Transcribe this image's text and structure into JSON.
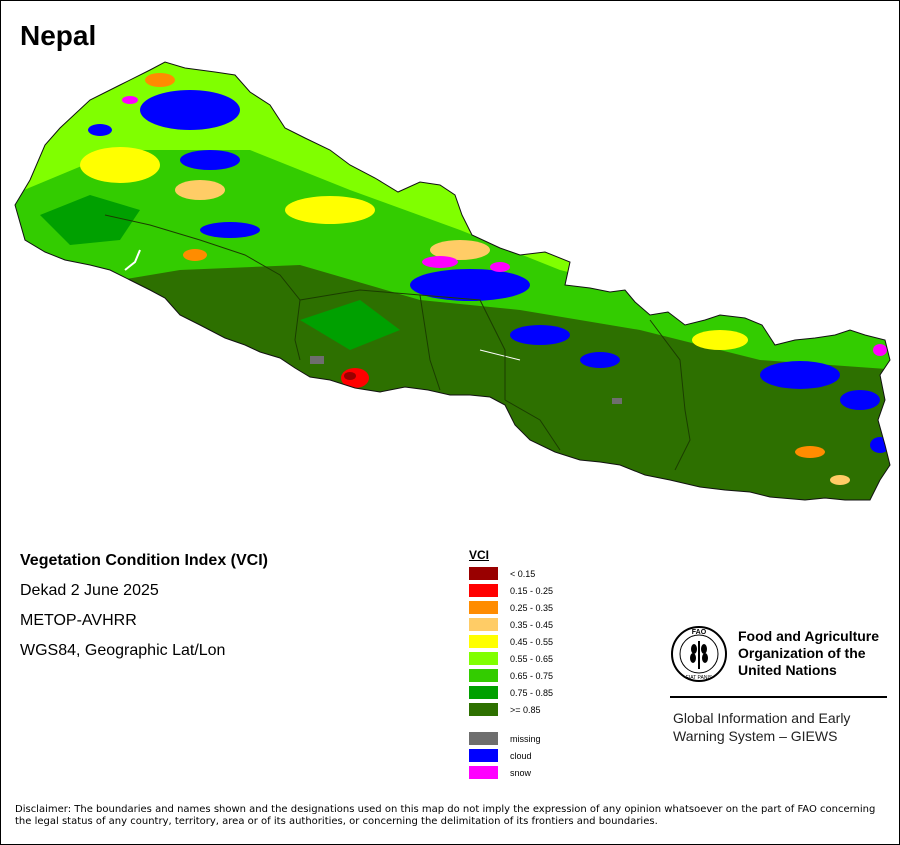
{
  "map": {
    "title": "Nepal"
  },
  "info": {
    "index_name": "Vegetation Condition Index (VCI)",
    "period": "Dekad 2 June 2025",
    "sensor": "METOP-AVHRR",
    "projection": "WGS84, Geographic Lat/Lon"
  },
  "legend": {
    "title": "VCI",
    "classes": [
      {
        "label": "< 0.15",
        "color": "#990000"
      },
      {
        "label": "0.15 - 0.25",
        "color": "#ff0000"
      },
      {
        "label": "0.25 - 0.35",
        "color": "#ff8c00"
      },
      {
        "label": "0.35 - 0.45",
        "color": "#ffcc66"
      },
      {
        "label": "0.45 - 0.55",
        "color": "#ffff00"
      },
      {
        "label": "0.55 - 0.65",
        "color": "#80ff00"
      },
      {
        "label": "0.65 - 0.75",
        "color": "#33cc00"
      },
      {
        "label": "0.75 - 0.85",
        "color": "#00a000"
      },
      {
        "label": ">= 0.85",
        "color": "#2d7000"
      }
    ],
    "other": [
      {
        "label": "missing",
        "color": "#6e6e6e"
      },
      {
        "label": "cloud",
        "color": "#0000ff"
      },
      {
        "label": "snow",
        "color": "#ff00ff"
      }
    ]
  },
  "org": {
    "name_line1": "Food and Agriculture",
    "name_line2": "Organization of the",
    "name_line3": "United Nations",
    "system_line1": "Global Information and Early",
    "system_line2": "Warning System – GIEWS",
    "logo_letters": "FAO",
    "logo_motto": "FIAT PANIS"
  },
  "disclaimer": "Disclaimer: The boundaries and names shown and the designations used on this map do not imply the expression of any opinion whatsoever on the part of FAO concerning the legal status of any country, territory, area or of its authorities, or concerning the delimitation of its frontiers and boundaries."
}
